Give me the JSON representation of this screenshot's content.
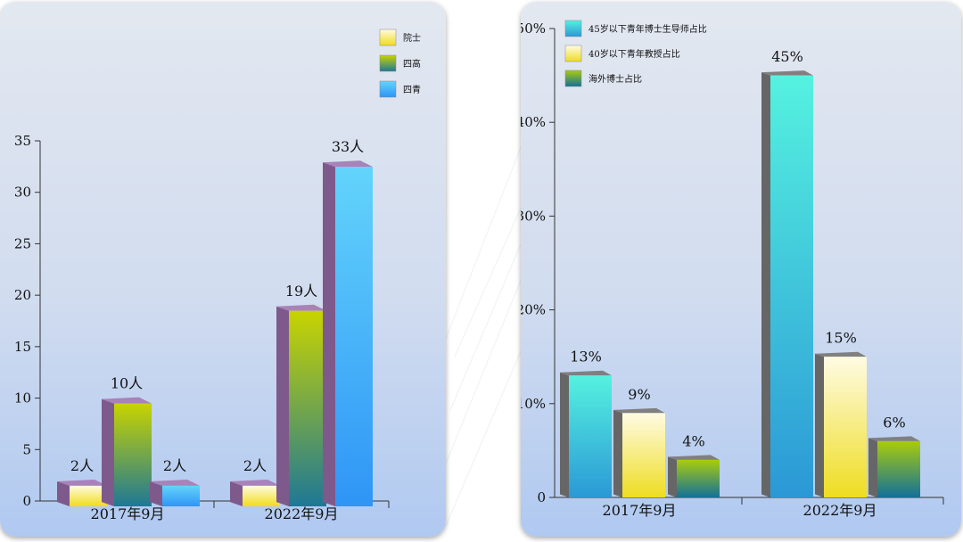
{
  "chart_data": [
    {
      "type": "bar",
      "categories": [
        "2017年9月",
        "2022年9月"
      ],
      "series": [
        {
          "name": "院士",
          "values": [
            2,
            2
          ],
          "labels": [
            "2人",
            "2人"
          ]
        },
        {
          "name": "四高",
          "values": [
            10,
            19
          ],
          "labels": [
            "10人",
            "19人"
          ]
        },
        {
          "name": "四青",
          "values": [
            2,
            33
          ],
          "labels": [
            "2人",
            "33人"
          ]
        }
      ],
      "yticks": [
        "0",
        "5",
        "10",
        "15",
        "20",
        "25",
        "30",
        "35"
      ],
      "ylim": [
        0,
        35
      ],
      "legend_position": "top-right",
      "colors": {
        "院士": [
          "#fffbe0",
          "#f0dc1a"
        ],
        "四高": [
          "#c8d400",
          "#1e7896"
        ],
        "四青": [
          "#63d4fb",
          "#2f95f6"
        ],
        "side": "#7e5a8c",
        "top": "#a882b8"
      }
    },
    {
      "type": "bar",
      "categories": [
        "2017年9月",
        "2022年9月"
      ],
      "series": [
        {
          "name": "45岁以下青年博士生导师占比",
          "values": [
            13,
            45
          ],
          "labels": [
            "13%",
            "45%"
          ]
        },
        {
          "name": "40岁以下青年教授占比",
          "values": [
            9,
            15
          ],
          "labels": [
            "9%",
            "15%"
          ]
        },
        {
          "name": "海外博士占比",
          "values": [
            4,
            6
          ],
          "labels": [
            "4%",
            "6%"
          ]
        }
      ],
      "yticks": [
        "0",
        "10%",
        "20%",
        "30%",
        "40%",
        "50%"
      ],
      "ylim": [
        0,
        50
      ],
      "legend_position": "top-left",
      "colors": {
        "45岁以下青年博士生导师占比": [
          "#55f2e0",
          "#2b98d6"
        ],
        "40岁以下青年教授占比": [
          "#fffbe3",
          "#eedd20"
        ],
        "海外博士占比": [
          "#a9cc0c",
          "#12709a"
        ],
        "side": "#666666",
        "top": "#808080"
      }
    }
  ]
}
